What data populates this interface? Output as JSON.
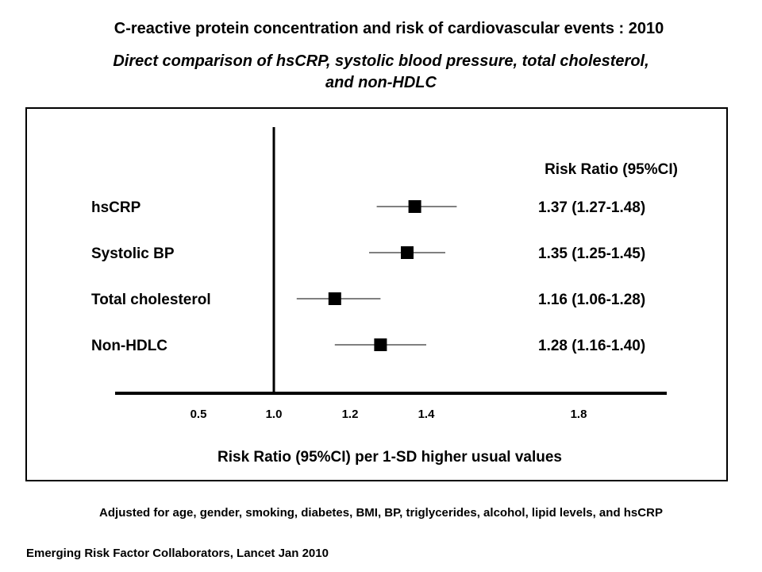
{
  "title": "C-reactive protein concentration and risk of cardiovascular events : 2010",
  "subtitle_line1": "Direct comparison of hsCRP, systolic blood pressure, total cholesterol,",
  "subtitle_line2": "and non-HDLC",
  "chart_data": {
    "type": "forest",
    "column_header": "Risk Ratio (95%CI)",
    "xlabel": "Risk Ratio (95%CI) per 1-SD higher usual values",
    "x_ticks": [
      {
        "label": "0.5",
        "value": 0.5
      },
      {
        "label": "1.0",
        "value": 1.0
      },
      {
        "label": "1.2",
        "value": 1.2
      },
      {
        "label": "1.4",
        "value": 1.4
      },
      {
        "label": "1.8",
        "value": 1.8
      }
    ],
    "reference_line": 1.0,
    "rows": [
      {
        "label": "hsCRP",
        "estimate": 1.37,
        "lower": 1.27,
        "upper": 1.48,
        "text": "1.37 (1.27-1.48)"
      },
      {
        "label": "Systolic BP",
        "estimate": 1.35,
        "lower": 1.25,
        "upper": 1.45,
        "text": "1.35 (1.25-1.45)"
      },
      {
        "label": "Total cholesterol",
        "estimate": 1.16,
        "lower": 1.06,
        "upper": 1.28,
        "text": "1.16 (1.06-1.28)"
      },
      {
        "label": "Non-HDLC",
        "estimate": 1.28,
        "lower": 1.16,
        "upper": 1.4,
        "text": "1.28 (1.16-1.40)"
      }
    ]
  },
  "footnote": "Adjusted for age, gender, smoking, diabetes, BMI, BP, triglycerides, alcohol, lipid levels, and hsCRP",
  "citation": "Emerging Risk Factor Collaborators, Lancet Jan 2010"
}
